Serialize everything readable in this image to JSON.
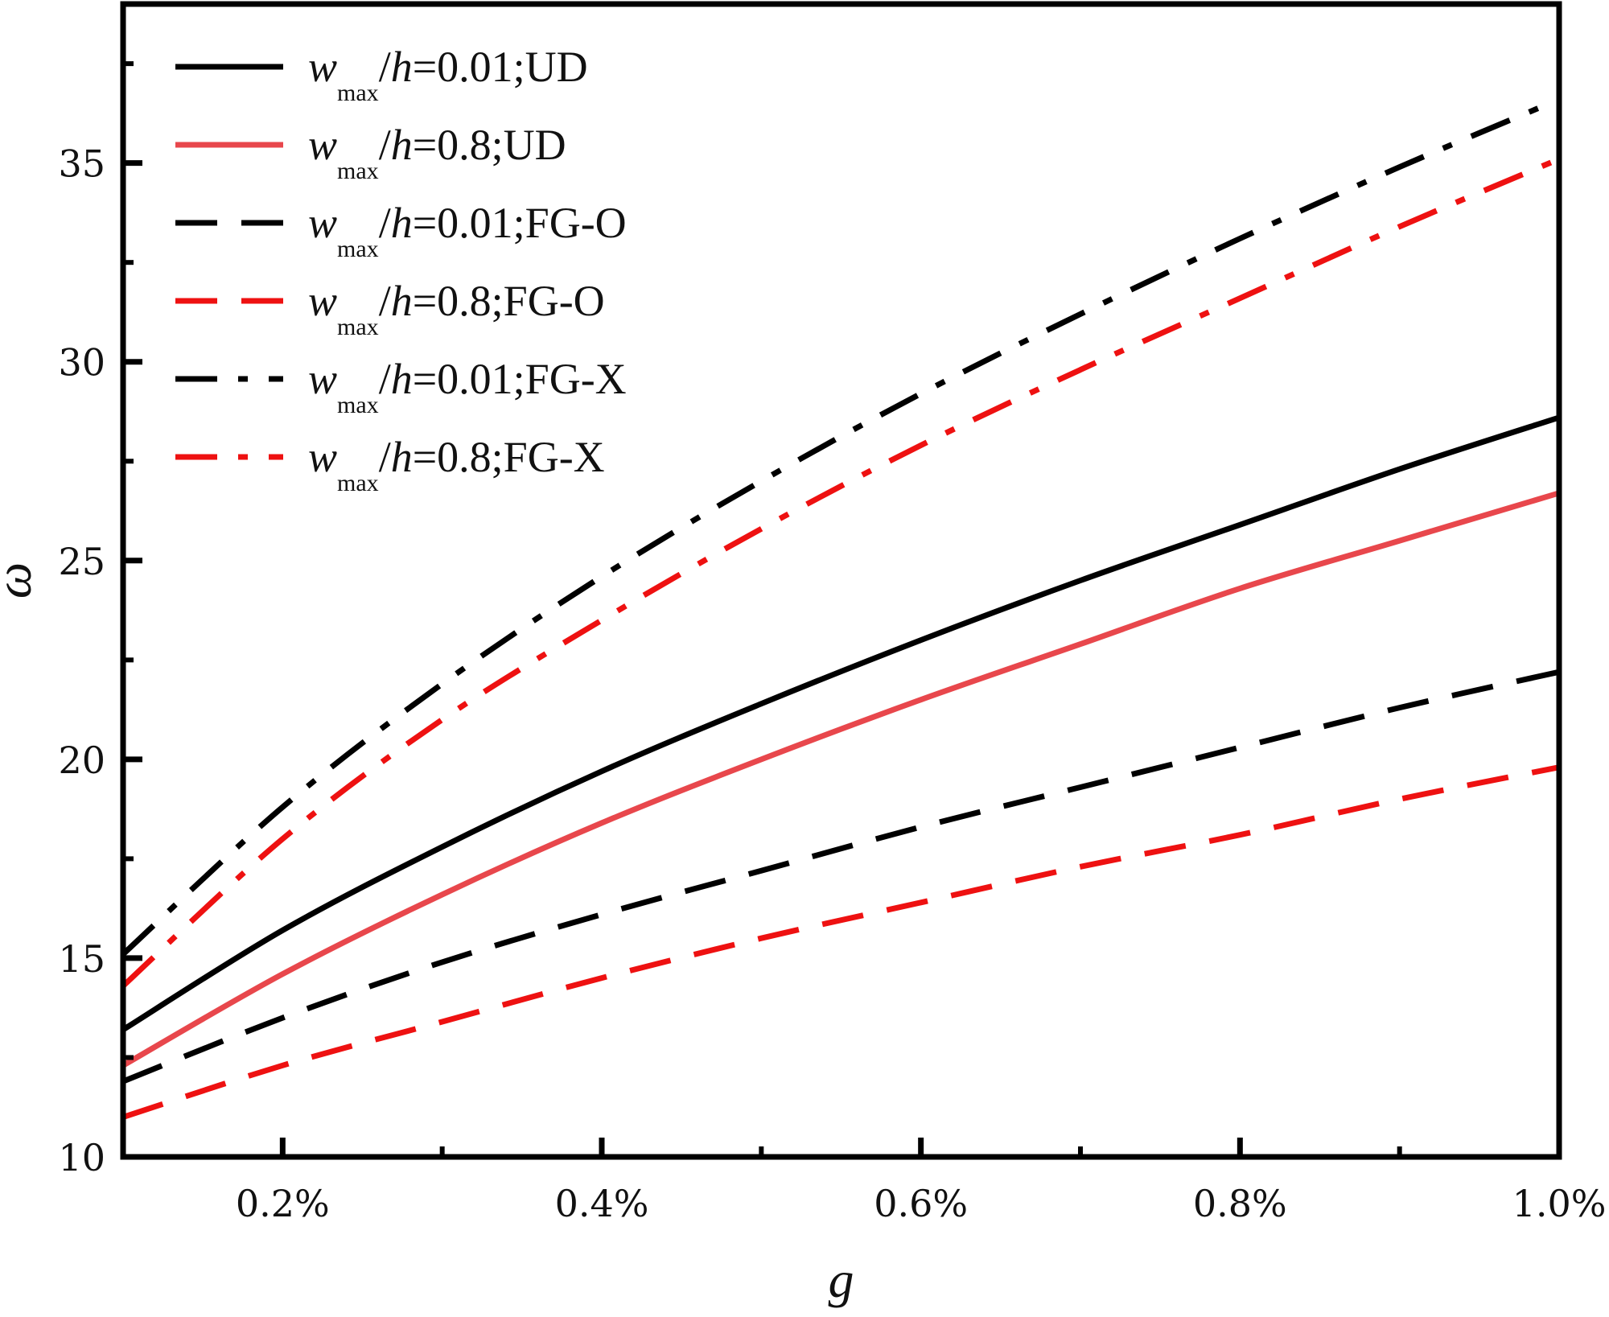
{
  "chart_data": {
    "type": "line",
    "xlabel": "g",
    "ylabel": "ω",
    "xlim": [
      0.1,
      1.0
    ],
    "ylim": [
      10,
      39
    ],
    "x_ticks": [
      {
        "value": 0.2,
        "label": "0.2%"
      },
      {
        "value": 0.4,
        "label": "0.4%"
      },
      {
        "value": 0.6,
        "label": "0.6%"
      },
      {
        "value": 0.8,
        "label": "0.8%"
      },
      {
        "value": 1.0,
        "label": "1.0%"
      }
    ],
    "x_minor_ticks": [
      0.3,
      0.5,
      0.7,
      0.9
    ],
    "y_ticks": [
      {
        "value": 10,
        "label": "10"
      },
      {
        "value": 15,
        "label": "15"
      },
      {
        "value": 20,
        "label": "20"
      },
      {
        "value": 25,
        "label": "25"
      },
      {
        "value": 30,
        "label": "30"
      },
      {
        "value": 35,
        "label": "35"
      }
    ],
    "y_minor_ticks": [
      12.5,
      17.5,
      22.5,
      27.5,
      32.5,
      37.5
    ],
    "x": [
      0.1,
      0.2,
      0.3,
      0.4,
      0.5,
      0.6,
      0.7,
      0.8,
      0.9,
      1.0
    ],
    "legend_position": "top-left",
    "series": [
      {
        "name": "UD-0.01",
        "label_main": "w",
        "label_sub": "max",
        "label_h": "h",
        "label_rest": "=0.01;UD",
        "color": "#000000",
        "dash": "solid",
        "values": [
          13.2,
          15.7,
          17.8,
          19.7,
          21.4,
          23.0,
          24.5,
          25.9,
          27.3,
          28.6
        ]
      },
      {
        "name": "UD-0.8",
        "label_main": "w",
        "label_sub": "max",
        "label_h": "h",
        "label_rest": "=0.8;UD",
        "color": "#e8474c",
        "dash": "solid",
        "values": [
          12.3,
          14.6,
          16.6,
          18.4,
          20.0,
          21.5,
          22.9,
          24.3,
          25.5,
          26.7
        ]
      },
      {
        "name": "FG-O-0.01",
        "label_main": "w",
        "label_sub": "max",
        "label_h": "h",
        "label_rest": "=0.01;FG-O",
        "color": "#000000",
        "dash": "dash",
        "values": [
          11.9,
          13.5,
          14.9,
          16.1,
          17.2,
          18.3,
          19.3,
          20.3,
          21.3,
          22.2
        ]
      },
      {
        "name": "FG-O-0.8",
        "label_main": "w",
        "label_sub": "max",
        "label_h": "h",
        "label_rest": "=0.8;FG-O",
        "color": "#ee1111",
        "dash": "dash",
        "values": [
          11.0,
          12.3,
          13.4,
          14.5,
          15.5,
          16.4,
          17.3,
          18.1,
          19.0,
          19.8
        ]
      },
      {
        "name": "FG-X-0.01",
        "label_main": "w",
        "label_sub": "max",
        "label_h": "h",
        "label_rest": "=0.01;FG-X",
        "color": "#000000",
        "dash": "dashdot",
        "values": [
          15.1,
          18.8,
          21.9,
          24.6,
          27.0,
          29.2,
          31.2,
          33.1,
          34.9,
          36.6
        ]
      },
      {
        "name": "FG-X-0.8",
        "label_main": "w",
        "label_sub": "max",
        "label_h": "h",
        "label_rest": "=0.8;FG-X",
        "color": "#ee1111",
        "dash": "dashdot",
        "values": [
          14.3,
          18.0,
          21.0,
          23.5,
          25.8,
          27.9,
          29.8,
          31.6,
          33.4,
          35.1
        ]
      }
    ]
  }
}
